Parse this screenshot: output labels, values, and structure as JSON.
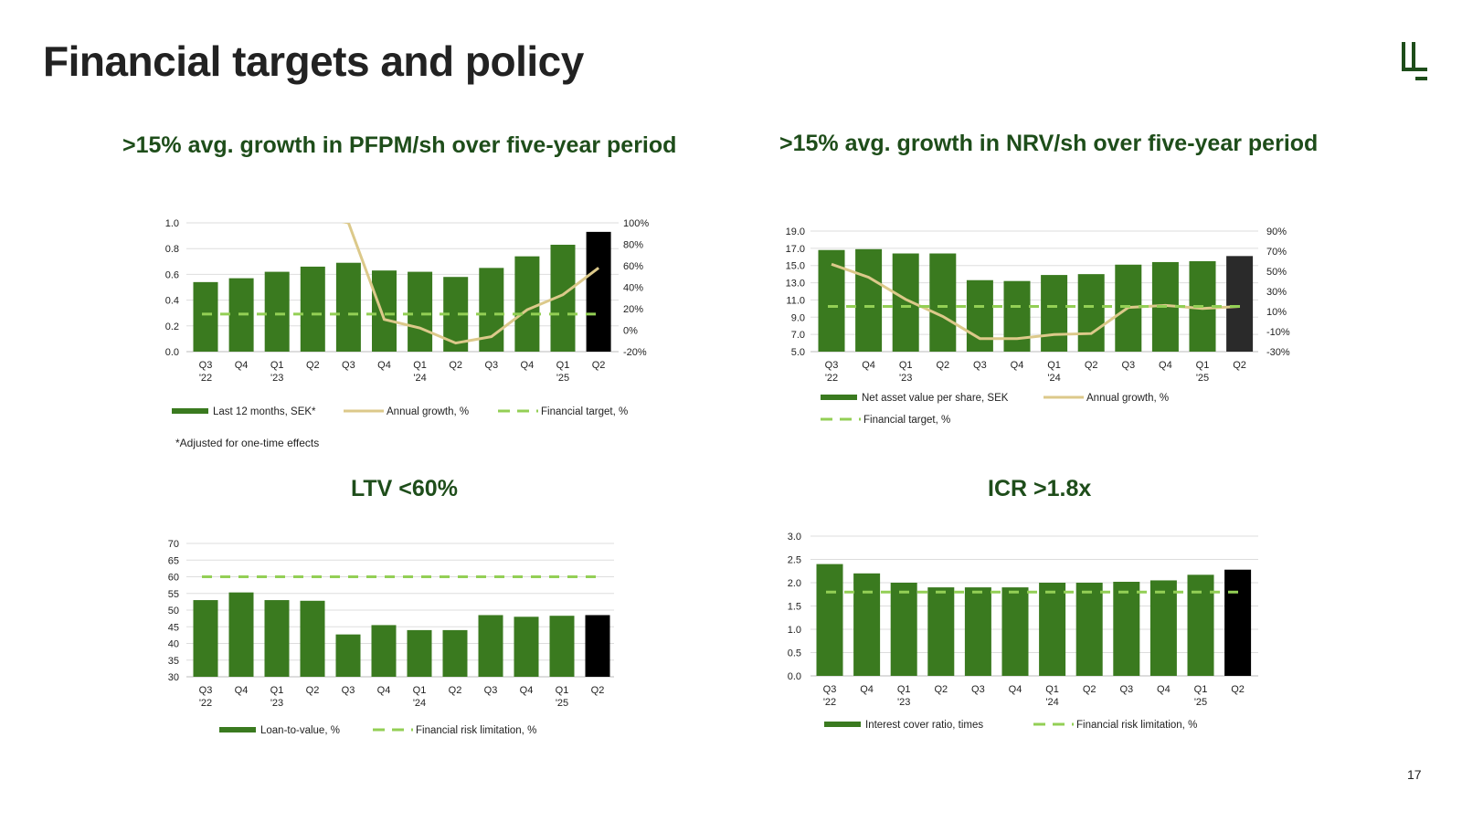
{
  "page": {
    "title": "Financial targets and policy",
    "page_number": "17",
    "footnote": "*Adjusted for one-time effects",
    "colors": {
      "bar": "#3a7a1f",
      "bar_last_black": "#000000",
      "bar_last_dark": "#2a2a2a",
      "line": "#dcc98a",
      "target": "#93cf55",
      "title": "#1e4d1a"
    }
  },
  "chart_data": [
    {
      "id": "pfpm",
      "type": "bar",
      "title": ">15% avg. growth in PFPM/sh over five-year period",
      "categories": [
        "Q3",
        "Q4",
        "Q1",
        "Q2",
        "Q3",
        "Q4",
        "Q1",
        "Q2",
        "Q3",
        "Q4",
        "Q1",
        "Q2"
      ],
      "year_labels": [
        "'22",
        "",
        "'23",
        "",
        "",
        "",
        "'24",
        "",
        "",
        "",
        "'25",
        ""
      ],
      "ylim": [
        0,
        1.0
      ],
      "yticks": [
        "0.0",
        "0.2",
        "0.4",
        "0.6",
        "0.8",
        "1.0"
      ],
      "y2lim": [
        -20,
        100
      ],
      "y2ticks": [
        "-20%",
        "0%",
        "20%",
        "40%",
        "60%",
        "80%",
        "100%"
      ],
      "series": [
        {
          "name": "Last 12 months, SEK*",
          "kind": "bar",
          "values": [
            0.54,
            0.57,
            0.62,
            0.66,
            0.69,
            0.63,
            0.62,
            0.58,
            0.65,
            0.74,
            0.83,
            0.93
          ]
        },
        {
          "name": "Annual growth, %",
          "kind": "line",
          "axis": "secondary",
          "values": [
            null,
            null,
            null,
            null,
            100,
            10,
            2,
            -12,
            -6,
            19,
            33,
            58
          ]
        },
        {
          "name": "Financial target, %",
          "kind": "target",
          "axis": "secondary",
          "values": [
            15,
            15,
            15,
            15,
            15,
            15,
            15,
            15,
            15,
            15,
            15,
            15
          ]
        }
      ]
    },
    {
      "id": "nrv",
      "type": "bar",
      "title": ">15% avg. growth in NRV/sh over five-year period",
      "categories": [
        "Q3",
        "Q4",
        "Q1",
        "Q2",
        "Q3",
        "Q4",
        "Q1",
        "Q2",
        "Q3",
        "Q4",
        "Q1",
        "Q2"
      ],
      "year_labels": [
        "'22",
        "",
        "'23",
        "",
        "",
        "",
        "'24",
        "",
        "",
        "",
        "'25",
        ""
      ],
      "ylim": [
        5,
        19
      ],
      "yticks": [
        "5.0",
        "7.0",
        "9.0",
        "11.0",
        "13.0",
        "15.0",
        "17.0",
        "19.0"
      ],
      "y2lim": [
        -30,
        90
      ],
      "y2ticks": [
        "-30%",
        "-10%",
        "10%",
        "30%",
        "50%",
        "70%",
        "90%"
      ],
      "series": [
        {
          "name": "Net asset value per share, SEK",
          "kind": "bar",
          "values": [
            16.8,
            16.9,
            16.4,
            16.4,
            13.3,
            13.2,
            13.9,
            14.0,
            15.1,
            15.4,
            15.5,
            16.1
          ]
        },
        {
          "name": "Annual growth, %",
          "kind": "line",
          "axis": "secondary",
          "values": [
            57,
            44,
            22,
            5,
            -17,
            -17,
            -13,
            -12,
            14,
            16,
            13,
            15
          ]
        },
        {
          "name": "Financial target, %",
          "kind": "target",
          "axis": "secondary",
          "values": [
            15,
            15,
            15,
            15,
            15,
            15,
            15,
            15,
            15,
            15,
            15,
            15
          ]
        }
      ]
    },
    {
      "id": "ltv",
      "type": "bar",
      "title": "LTV <60%",
      "categories": [
        "Q3",
        "Q4",
        "Q1",
        "Q2",
        "Q3",
        "Q4",
        "Q1",
        "Q2",
        "Q3",
        "Q4",
        "Q1",
        "Q2"
      ],
      "year_labels": [
        "'22",
        "",
        "'23",
        "",
        "",
        "",
        "'24",
        "",
        "",
        "",
        "'25",
        ""
      ],
      "ylim": [
        30,
        70
      ],
      "yticks": [
        "30",
        "35",
        "40",
        "45",
        "50",
        "55",
        "60",
        "65",
        "70"
      ],
      "series": [
        {
          "name": "Loan-to-value, %",
          "kind": "bar",
          "values": [
            53.0,
            55.3,
            53.0,
            52.8,
            42.7,
            45.5,
            44.0,
            44.0,
            48.5,
            48.0,
            48.3,
            48.5
          ]
        },
        {
          "name": "Financial risk limitation, %",
          "kind": "target",
          "values": [
            60,
            60,
            60,
            60,
            60,
            60,
            60,
            60,
            60,
            60,
            60,
            60
          ]
        }
      ]
    },
    {
      "id": "icr",
      "type": "bar",
      "title": "ICR >1.8x",
      "categories": [
        "Q3",
        "Q4",
        "Q1",
        "Q2",
        "Q3",
        "Q4",
        "Q1",
        "Q2",
        "Q3",
        "Q4",
        "Q1",
        "Q2"
      ],
      "year_labels": [
        "'22",
        "",
        "'23",
        "",
        "",
        "",
        "'24",
        "",
        "",
        "",
        "'25",
        ""
      ],
      "ylim": [
        0,
        3.0
      ],
      "yticks": [
        "0.0",
        "0.5",
        "1.0",
        "1.5",
        "2.0",
        "2.5",
        "3.0"
      ],
      "series": [
        {
          "name": "Interest cover ratio, times",
          "kind": "bar",
          "values": [
            2.4,
            2.2,
            2.0,
            1.9,
            1.9,
            1.9,
            2.0,
            2.0,
            2.02,
            2.05,
            2.17,
            2.28
          ]
        },
        {
          "name": "Financial risk limitation, %",
          "kind": "target",
          "values": [
            1.8,
            1.8,
            1.8,
            1.8,
            1.8,
            1.8,
            1.8,
            1.8,
            1.8,
            1.8,
            1.8,
            1.8
          ]
        }
      ]
    }
  ]
}
